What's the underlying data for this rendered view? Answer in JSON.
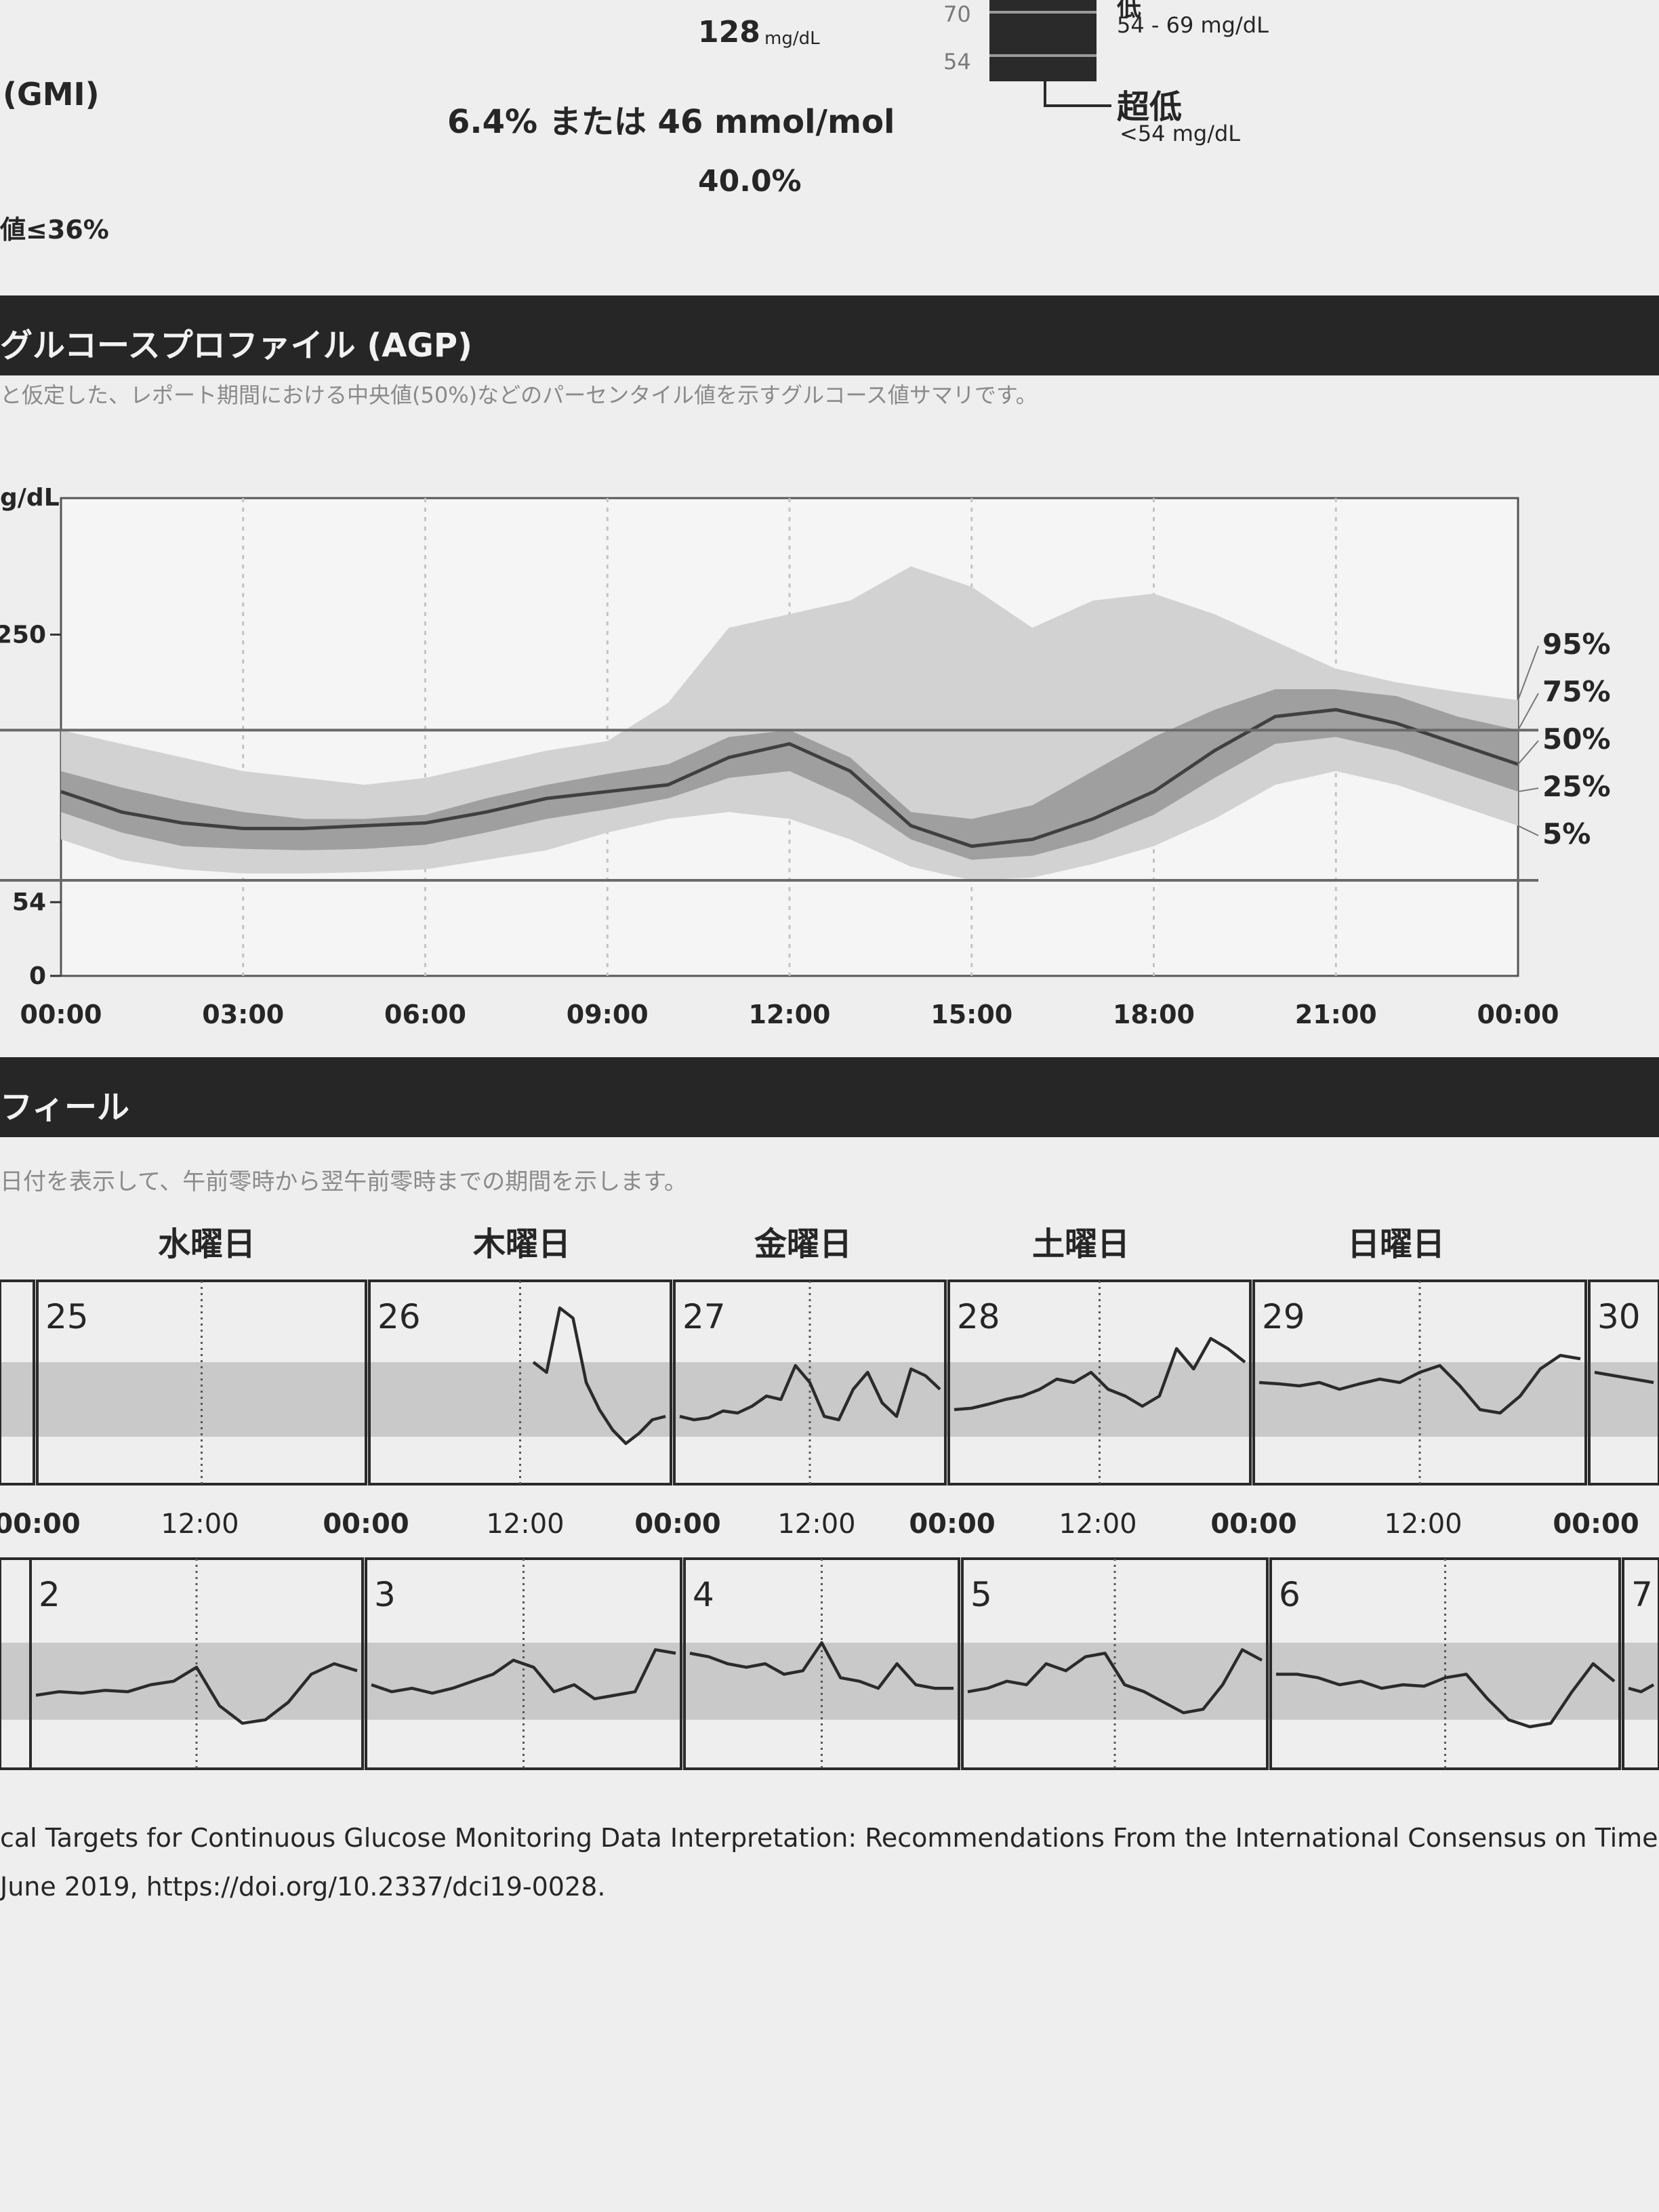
{
  "summary": {
    "average_value": "128",
    "average_unit": "mg/dL",
    "gmi_label": "(GMI)",
    "gmi_value": "6.4% または 46 mmol/mol",
    "cv_value": "40.0%",
    "cv_target": "値≤36%"
  },
  "tir_legend": {
    "tick_70": "70",
    "tick_54": "54",
    "low_title": "低",
    "low_range": "54 - 69 mg/dL",
    "very_low_title": "超低",
    "very_low_range": "<54 mg/dL"
  },
  "agp": {
    "header": "グルコースプロファイル (AGP)",
    "description": "と仮定した、レポート期間における中央値(50%)などのパーセンタイル値を示すグルコース値サマリです。",
    "y_unit": "g/dL"
  },
  "daily": {
    "header": "フィール",
    "description": "日付を表示して、午前零時から翌午前零時までの期間を示します。"
  },
  "footer": {
    "line1": "cal Targets for Continuous Glucose Monitoring Data Interpretation: Recommendations From the International Consensus on Time in R",
    "line2": "June 2019, https://doi.org/10.2337/dci19-0028."
  },
  "chart_data": [
    {
      "type": "area",
      "ylim": [
        0,
        350
      ],
      "target_range": [
        70,
        180
      ],
      "y_ticks": [
        {
          "value": 250,
          "label": "250"
        },
        {
          "value": 54,
          "label": "54"
        },
        {
          "value": 0,
          "label": "0"
        }
      ],
      "x_hours": [
        0,
        1,
        2,
        3,
        4,
        5,
        6,
        7,
        8,
        9,
        10,
        11,
        12,
        13,
        14,
        15,
        16,
        17,
        18,
        19,
        20,
        21,
        22,
        23,
        24
      ],
      "x_ticks": [
        {
          "hour": 0,
          "label": "00:00"
        },
        {
          "hour": 3,
          "label": "03:00"
        },
        {
          "hour": 6,
          "label": "06:00"
        },
        {
          "hour": 9,
          "label": "09:00"
        },
        {
          "hour": 12,
          "label": "12:00"
        },
        {
          "hour": 15,
          "label": "15:00"
        },
        {
          "hour": 18,
          "label": "18:00"
        },
        {
          "hour": 21,
          "label": "21:00"
        },
        {
          "hour": 24,
          "label": "00:00"
        }
      ],
      "percentile_labels": [
        "95%",
        "75%",
        "50%",
        "25%",
        "5%"
      ],
      "p95": [
        180,
        170,
        160,
        150,
        145,
        140,
        145,
        155,
        165,
        172,
        200,
        255,
        265,
        275,
        300,
        285,
        255,
        275,
        280,
        265,
        245,
        225,
        215,
        208,
        202
      ],
      "p75": [
        150,
        138,
        128,
        120,
        115,
        115,
        118,
        130,
        140,
        148,
        155,
        175,
        180,
        160,
        120,
        115,
        125,
        150,
        175,
        195,
        210,
        210,
        205,
        190,
        180
      ],
      "p50": [
        135,
        120,
        112,
        108,
        108,
        110,
        112,
        120,
        130,
        135,
        140,
        160,
        170,
        150,
        110,
        95,
        100,
        115,
        135,
        165,
        190,
        195,
        185,
        170,
        155
      ],
      "p25": [
        120,
        105,
        95,
        93,
        92,
        93,
        96,
        105,
        115,
        122,
        130,
        145,
        150,
        130,
        100,
        85,
        88,
        100,
        118,
        145,
        170,
        175,
        165,
        150,
        135
      ],
      "p5": [
        100,
        85,
        78,
        75,
        75,
        76,
        78,
        85,
        92,
        105,
        115,
        120,
        115,
        100,
        80,
        70,
        72,
        82,
        95,
        115,
        140,
        150,
        140,
        125,
        110
      ]
    },
    {
      "type": "line",
      "target_range": [
        70,
        180
      ],
      "weekday_labels": [
        "水曜日",
        "木曜日",
        "金曜日",
        "土曜日",
        "日曜日"
      ],
      "x_tick_labels": [
        "00:00",
        "12:00",
        "00:00",
        "12:00",
        "00:00",
        "12:00",
        "00:00",
        "12:00",
        "00:00",
        "12:00",
        "00:00"
      ],
      "days": [
        {
          "label": "25",
          "values": []
        },
        {
          "label": "26",
          "values": [
            0,
            0,
            0,
            0,
            0,
            0,
            0,
            0,
            0,
            0,
            0,
            0,
            180,
            165,
            260,
            245,
            150,
            110,
            80,
            60,
            75,
            95,
            100
          ]
        },
        {
          "label": "27",
          "values": [
            100,
            95,
            98,
            108,
            105,
            115,
            130,
            125,
            175,
            150,
            100,
            95,
            140,
            165,
            120,
            100,
            170,
            160,
            140
          ]
        },
        {
          "label": "28",
          "values": [
            110,
            112,
            118,
            125,
            130,
            140,
            155,
            150,
            165,
            140,
            130,
            115,
            130,
            200,
            170,
            215,
            200,
            180
          ]
        },
        {
          "label": "29",
          "values": [
            150,
            148,
            145,
            150,
            140,
            148,
            155,
            150,
            165,
            175,
            145,
            110,
            105,
            130,
            170,
            190,
            185
          ]
        },
        {
          "label": "30",
          "values": [
            165,
            160,
            155,
            150
          ]
        },
        {
          "label": "2",
          "values": [
            105,
            110,
            108,
            112,
            110,
            120,
            125,
            145,
            90,
            65,
            70,
            95,
            135,
            150,
            140
          ]
        },
        {
          "label": "3",
          "values": [
            120,
            110,
            115,
            108,
            115,
            125,
            135,
            155,
            145,
            110,
            120,
            100,
            105,
            110,
            170,
            165
          ]
        },
        {
          "label": "4",
          "values": [
            165,
            160,
            150,
            145,
            150,
            135,
            140,
            180,
            130,
            125,
            115,
            150,
            120,
            115,
            115
          ]
        },
        {
          "label": "5",
          "values": [
            110,
            115,
            125,
            120,
            150,
            140,
            160,
            165,
            120,
            110,
            95,
            80,
            85,
            120,
            170,
            155
          ]
        },
        {
          "label": "6",
          "values": [
            135,
            135,
            130,
            120,
            125,
            115,
            120,
            118,
            130,
            135,
            100,
            70,
            60,
            65,
            110,
            150,
            125
          ]
        },
        {
          "label": "7",
          "values": [
            115,
            110,
            120
          ]
        }
      ]
    }
  ]
}
